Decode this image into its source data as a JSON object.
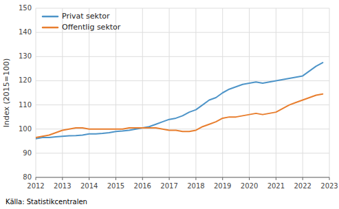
{
  "chart_data": {
    "type": "line",
    "ylabel": "Index (2015=100)",
    "source": "Källa: Statistikcentralen",
    "x": [
      2012.0,
      2012.25,
      2012.5,
      2012.75,
      2013.0,
      2013.25,
      2013.5,
      2013.75,
      2014.0,
      2014.25,
      2014.5,
      2014.75,
      2015.0,
      2015.25,
      2015.5,
      2015.75,
      2016.0,
      2016.25,
      2016.5,
      2016.75,
      2017.0,
      2017.25,
      2017.5,
      2017.75,
      2018.0,
      2018.25,
      2018.5,
      2018.75,
      2019.0,
      2019.25,
      2019.5,
      2019.75,
      2020.0,
      2020.25,
      2020.5,
      2020.75,
      2021.0,
      2021.25,
      2021.5,
      2021.75,
      2022.0,
      2022.25,
      2022.5,
      2022.75
    ],
    "series": [
      {
        "name": "Privat sektor",
        "color": "#4d94c8",
        "values": [
          96.0,
          96.5,
          96.5,
          96.8,
          97.0,
          97.2,
          97.3,
          97.5,
          98.0,
          98.0,
          98.2,
          98.5,
          99.0,
          99.2,
          99.5,
          100.0,
          100.5,
          101.0,
          102.0,
          103.0,
          104.0,
          104.5,
          105.5,
          107.0,
          108.0,
          110.0,
          112.0,
          113.0,
          115.0,
          116.5,
          117.5,
          118.5,
          119.0,
          119.5,
          119.0,
          119.5,
          120.0,
          120.5,
          121.0,
          121.5,
          122.0,
          124.0,
          126.0,
          127.5
        ]
      },
      {
        "name": "Offentlig sektor",
        "color": "#e87e2e",
        "values": [
          96.5,
          97.0,
          97.5,
          98.5,
          99.5,
          100.0,
          100.5,
          100.5,
          100.0,
          100.0,
          100.0,
          100.0,
          100.0,
          100.0,
          100.5,
          100.5,
          100.5,
          100.5,
          100.5,
          100.0,
          99.5,
          99.5,
          99.0,
          99.0,
          99.5,
          101.0,
          102.0,
          103.0,
          104.5,
          105.0,
          105.0,
          105.5,
          106.0,
          106.5,
          106.0,
          106.5,
          107.0,
          108.5,
          110.0,
          111.0,
          112.0,
          113.0,
          114.0,
          114.5
        ]
      }
    ],
    "xlim": [
      2012,
      2023
    ],
    "xticks": [
      2012,
      2013,
      2014,
      2015,
      2016,
      2017,
      2018,
      2019,
      2020,
      2021,
      2022,
      2023
    ],
    "ylim": [
      80,
      150
    ],
    "yticks": [
      80,
      90,
      100,
      110,
      120,
      130,
      140,
      150
    ],
    "grid": true,
    "legend": "upper left"
  }
}
